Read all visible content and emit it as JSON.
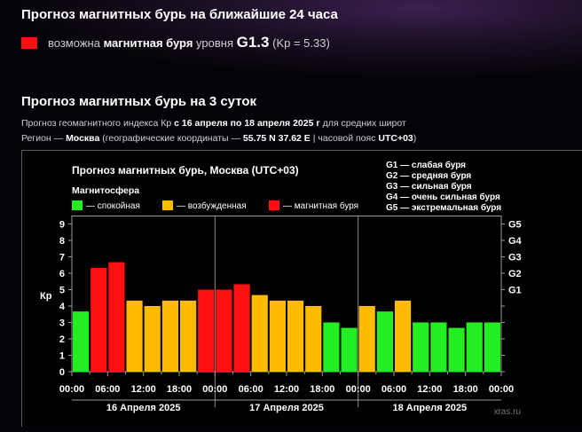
{
  "header24": {
    "title": "Прогноз магнитных бурь на ближайшие 24 часа",
    "prefix": "возможна",
    "storm": "магнитная буря",
    "level_word": "уровня",
    "level": "G1.3",
    "kp": "(Kp = 5.33)",
    "color": "#ff1010"
  },
  "header3": {
    "title": "Прогноз магнитных бурь на 3 суток",
    "info_prefix": "Прогноз геомагнитного индекса Кр",
    "period": "с 16 апреля по 18 апреля 2025 г",
    "info_suffix": "для средних широт",
    "region_prefix": "Регион —",
    "city": "Москва",
    "coords_prefix": "(географические координаты —",
    "coords": "55.75 N 37.62 E",
    "tz_prefix": "| часовой пояс",
    "tz": "UTC+03",
    "tz_suffix": ")"
  },
  "chart_data": {
    "type": "bar",
    "title": "Прогноз магнитных бурь, Москва (UTC+03)",
    "legend_title": "Магнитосфера",
    "legend": [
      {
        "label": "— спокойная",
        "color": "#22ee22"
      },
      {
        "label": "— возбужденная",
        "color": "#ffbb00"
      },
      {
        "label": "— магнитная буря",
        "color": "#ff1010"
      }
    ],
    "scale_legend": [
      "G1 — слабая буря",
      "G2 — средняя буря",
      "G3 — сильная буря",
      "G4 — очень сильная буря",
      "G5 — экстремальная буря"
    ],
    "ylabel": "Кр",
    "ylim": [
      0,
      9
    ],
    "yticks": [
      "0",
      "1",
      "2",
      "3",
      "4",
      "5",
      "6",
      "7",
      "8",
      "9"
    ],
    "right_ticks": [
      {
        "label": "G1",
        "kp": 5
      },
      {
        "label": "G2",
        "kp": 6
      },
      {
        "label": "G3",
        "kp": 7
      },
      {
        "label": "G4",
        "kp": 8
      },
      {
        "label": "G5",
        "kp": 9
      }
    ],
    "x_tick_labels": [
      "00:00",
      "06:00",
      "12:00",
      "18:00",
      "00:00",
      "06:00",
      "12:00",
      "18:00",
      "00:00",
      "06:00",
      "12:00",
      "18:00",
      "00:00"
    ],
    "days": [
      "16 Апреля 2025",
      "17 Апреля 2025",
      "18 Апреля 2025"
    ],
    "values": [
      3.67,
      6.33,
      6.67,
      4.33,
      4.0,
      4.33,
      4.33,
      5.0,
      5.0,
      5.33,
      4.67,
      4.33,
      4.33,
      4.0,
      3.0,
      2.67,
      4.0,
      3.67,
      4.33,
      3.0,
      3.0,
      2.67,
      3.0,
      3.0
    ],
    "levels": [
      "quiet",
      "storm",
      "storm",
      "active",
      "active",
      "active",
      "active",
      "storm",
      "storm",
      "storm",
      "active",
      "active",
      "active",
      "active",
      "quiet",
      "quiet",
      "active",
      "quiet",
      "active",
      "quiet",
      "quiet",
      "quiet",
      "quiet",
      "quiet"
    ],
    "grid": false,
    "watermark": "xras.ru"
  }
}
